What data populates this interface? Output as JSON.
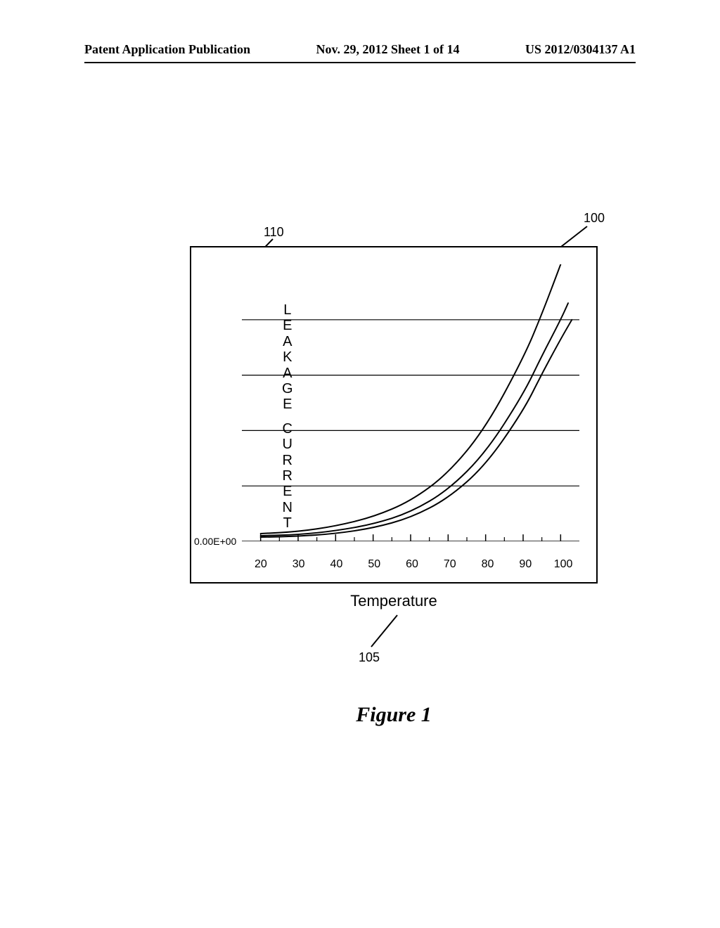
{
  "header": {
    "left": "Patent Application Publication",
    "center": "Nov. 29, 2012  Sheet 1 of 14",
    "right": "US 2012/0304137 A1"
  },
  "figure": {
    "caption": "Figure 1",
    "x_axis_title": "Temperature",
    "y_axis_title_letters": [
      "L",
      "E",
      "A",
      "K",
      "A",
      "G",
      "E",
      "",
      "C",
      "U",
      "R",
      "R",
      "E",
      "N",
      "T"
    ],
    "refs": {
      "chart": "100",
      "xaxis": "105",
      "yaxis": "110"
    }
  },
  "chart": {
    "type": "line",
    "background_color": "#ffffff",
    "border_color": "#000000",
    "grid_color": "#000000",
    "line_color": "#000000",
    "line_width": 2,
    "xlim": [
      15,
      105
    ],
    "ylim": [
      0,
      1
    ],
    "x_ticks": [
      20,
      30,
      40,
      50,
      60,
      70,
      80,
      90,
      100
    ],
    "y_grid": [
      0.2,
      0.4,
      0.6,
      0.8
    ],
    "y_tick0_label": "0.00E+00",
    "tick_fontsize": 16,
    "axis_title_fontsize": 22,
    "series": [
      {
        "name": "upper",
        "xs": [
          20,
          30,
          40,
          50,
          60,
          70,
          80,
          90,
          95,
          100
        ],
        "ys": [
          0.028,
          0.035,
          0.055,
          0.088,
          0.145,
          0.245,
          0.41,
          0.66,
          0.82,
          1.0
        ]
      },
      {
        "name": "mid",
        "xs": [
          20,
          30,
          40,
          50,
          60,
          70,
          80,
          90,
          95,
          100,
          102
        ],
        "ys": [
          0.02,
          0.024,
          0.038,
          0.062,
          0.105,
          0.185,
          0.32,
          0.53,
          0.67,
          0.8,
          0.86
        ]
      },
      {
        "name": "lower",
        "xs": [
          20,
          30,
          40,
          50,
          60,
          70,
          80,
          90,
          95,
          100,
          103
        ],
        "ys": [
          0.015,
          0.018,
          0.028,
          0.048,
          0.085,
          0.155,
          0.275,
          0.47,
          0.605,
          0.73,
          0.8
        ]
      }
    ]
  }
}
